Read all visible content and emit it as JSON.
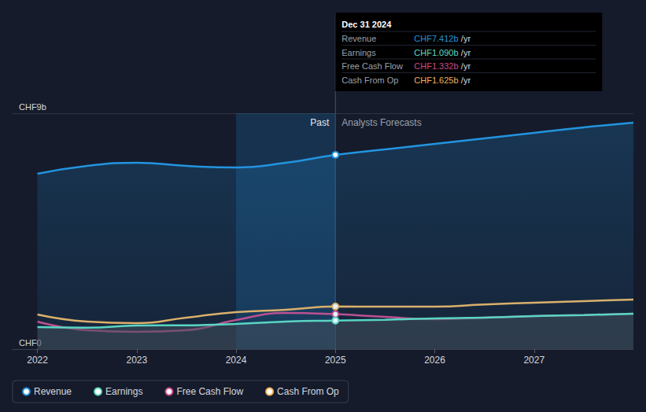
{
  "chart_data": {
    "type": "line",
    "x": [
      2022,
      2022.5,
      2023,
      2023.5,
      2024,
      2024.5,
      2025,
      2025.5,
      2026,
      2026.5,
      2027,
      2027.5,
      2028
    ],
    "series": [
      {
        "name": "Revenue",
        "color": "#2394df",
        "values": [
          6.69,
          6.99,
          7.11,
          6.99,
          6.93,
          7.11,
          7.412,
          7.62,
          7.83,
          8.04,
          8.25,
          8.46,
          8.64
        ]
      },
      {
        "name": "Earnings",
        "color": "#5fdcc0",
        "values": [
          0.84,
          0.82,
          0.9,
          0.91,
          0.96,
          1.05,
          1.09,
          1.12,
          1.17,
          1.2,
          1.26,
          1.3,
          1.35
        ]
      },
      {
        "name": "Free Cash Flow",
        "color": "#cc4a88",
        "values": [
          1.05,
          0.72,
          0.66,
          0.72,
          1.11,
          1.38,
          1.332,
          1.23,
          1.14,
          1.2,
          1.26,
          1.3,
          1.35
        ]
      },
      {
        "name": "Cash From Op",
        "color": "#f0b35e",
        "values": [
          1.32,
          1.05,
          0.99,
          1.2,
          1.41,
          1.5,
          1.625,
          1.62,
          1.62,
          1.7,
          1.77,
          1.83,
          1.89
        ]
      }
    ],
    "xlim": [
      2021.75,
      2028
    ],
    "xticks": [
      2022,
      2023,
      2024,
      2025,
      2026,
      2027
    ],
    "ylim": [
      0,
      9
    ],
    "yticks": [
      {
        "value": 0,
        "label": "CHF0"
      },
      {
        "value": 9,
        "label": "CHF9b"
      }
    ],
    "grid": true,
    "legend": "bottom-left",
    "annotations": [
      {
        "text": "Past",
        "x_from": 2024,
        "x_to": 2025
      },
      {
        "text": "Analysts Forecasts",
        "x": 2025
      }
    ],
    "tooltip": {
      "x": 2025,
      "title": "Dec 31 2024",
      "rows": [
        {
          "label": "Revenue",
          "value": "CHF7.412b",
          "unit": "/yr"
        },
        {
          "label": "Earnings",
          "value": "CHF1.090b",
          "unit": "/yr"
        },
        {
          "label": "Free Cash Flow",
          "value": "CHF1.332b",
          "unit": "/yr"
        },
        {
          "label": "Cash From Op",
          "value": "CHF1.625b",
          "unit": "/yr"
        }
      ]
    }
  }
}
